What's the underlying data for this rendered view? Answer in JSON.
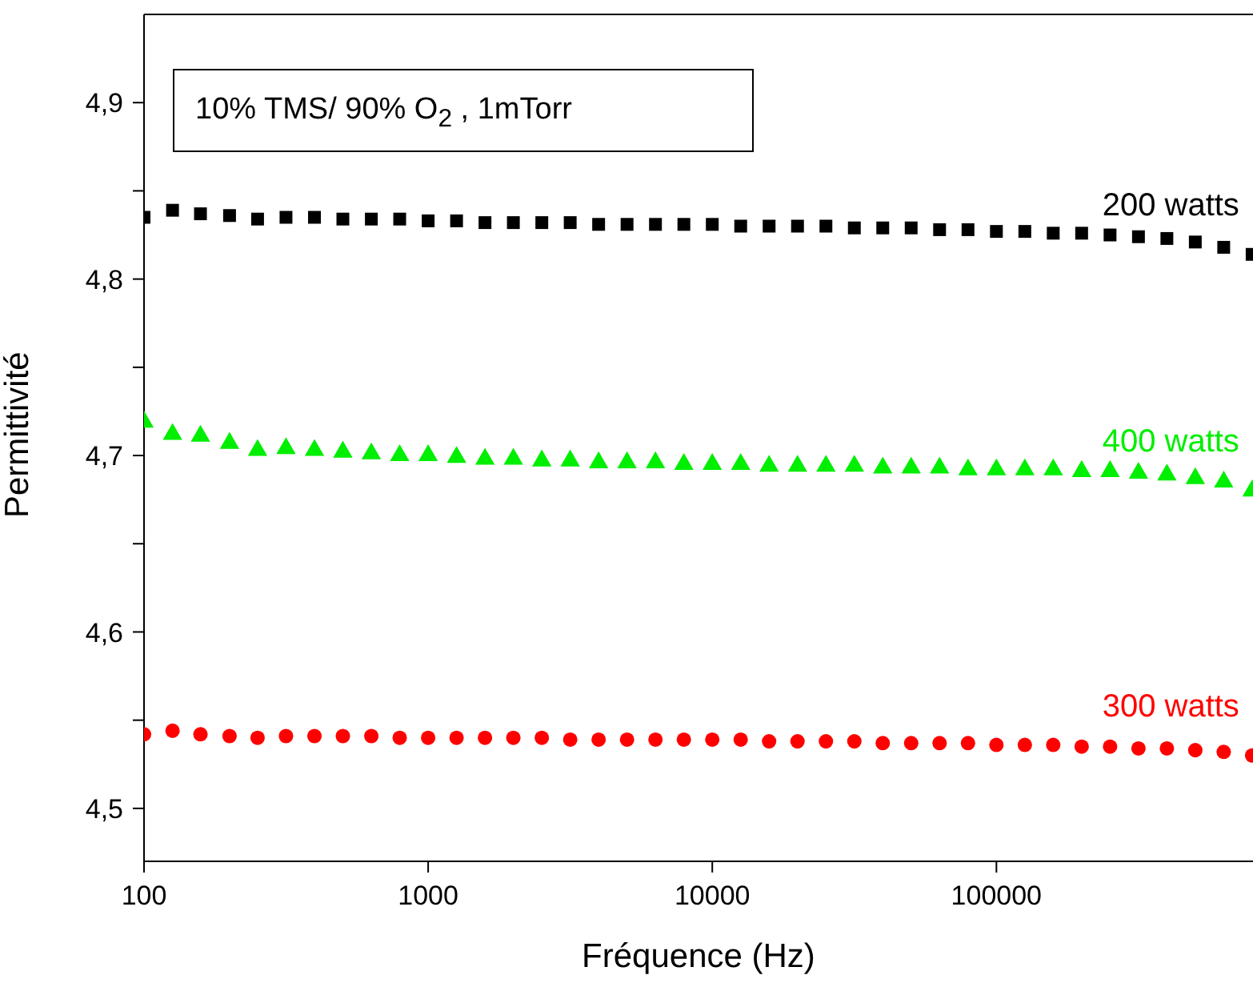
{
  "chart_data": {
    "type": "scatter",
    "xlabel": "Fréquence (Hz)",
    "ylabel": "Permittivité",
    "log": "x",
    "legend": false,
    "grid": false,
    "annotations": [
      "10% TMS/ 90% O$_{2}$ , 1mTorr"
    ],
    "x": [
      100,
      126,
      158,
      200,
      251,
      316,
      398,
      501,
      631,
      794,
      1000,
      1259,
      1585,
      1995,
      2512,
      3162,
      3981,
      5012,
      6310,
      7943,
      10000,
      12589,
      15849,
      19953,
      25119,
      31623,
      39811,
      50119,
      63096,
      79433,
      100000,
      125893,
      158489,
      199526,
      251189,
      316228,
      398107,
      501187,
      630957,
      794328
    ],
    "xlim": [
      100,
      800000
    ],
    "xticks": [
      100,
      1000,
      10000,
      100000
    ],
    "ylim": [
      4.47,
      4.95
    ],
    "yticks": [
      {
        "value": 4.5,
        "label": "4,5"
      },
      {
        "value": 4.55,
        "label": null
      },
      {
        "value": 4.6,
        "label": "4,6"
      },
      {
        "value": 4.65,
        "label": null
      },
      {
        "value": 4.7,
        "label": "4,7"
      },
      {
        "value": 4.75,
        "label": null
      },
      {
        "value": 4.8,
        "label": "4,8"
      },
      {
        "value": 4.85,
        "label": null
      },
      {
        "value": 4.9,
        "label": "4,9"
      }
    ],
    "series": [
      {
        "name": "200 watts",
        "color": "#000000",
        "marker": "square",
        "values": [
          4.835,
          4.839,
          4.837,
          4.836,
          4.834,
          4.835,
          4.835,
          4.834,
          4.834,
          4.834,
          4.833,
          4.833,
          4.832,
          4.832,
          4.832,
          4.832,
          4.831,
          4.831,
          4.831,
          4.831,
          4.831,
          4.83,
          4.83,
          4.83,
          4.83,
          4.829,
          4.829,
          4.829,
          4.828,
          4.828,
          4.827,
          4.827,
          4.826,
          4.826,
          4.825,
          4.824,
          4.823,
          4.821,
          4.818,
          4.814
        ]
      },
      {
        "name": "400 watts",
        "color": "#00ee00",
        "marker": "triangle",
        "values": [
          4.719,
          4.712,
          4.711,
          4.707,
          4.703,
          4.704,
          4.703,
          4.702,
          4.701,
          4.7,
          4.7,
          4.699,
          4.698,
          4.698,
          4.697,
          4.697,
          4.696,
          4.696,
          4.696,
          4.695,
          4.695,
          4.695,
          4.694,
          4.694,
          4.694,
          4.694,
          4.693,
          4.693,
          4.693,
          4.692,
          4.692,
          4.692,
          4.692,
          4.691,
          4.691,
          4.69,
          4.689,
          4.687,
          4.685,
          4.68
        ]
      },
      {
        "name": "300 watts",
        "color": "#ff0000",
        "marker": "circle",
        "values": [
          4.542,
          4.544,
          4.542,
          4.541,
          4.54,
          4.541,
          4.541,
          4.541,
          4.541,
          4.54,
          4.54,
          4.54,
          4.54,
          4.54,
          4.54,
          4.539,
          4.539,
          4.539,
          4.539,
          4.539,
          4.539,
          4.539,
          4.538,
          4.538,
          4.538,
          4.538,
          4.537,
          4.537,
          4.537,
          4.537,
          4.536,
          4.536,
          4.536,
          4.535,
          4.535,
          4.534,
          4.534,
          4.533,
          4.532,
          4.53
        ]
      }
    ]
  }
}
